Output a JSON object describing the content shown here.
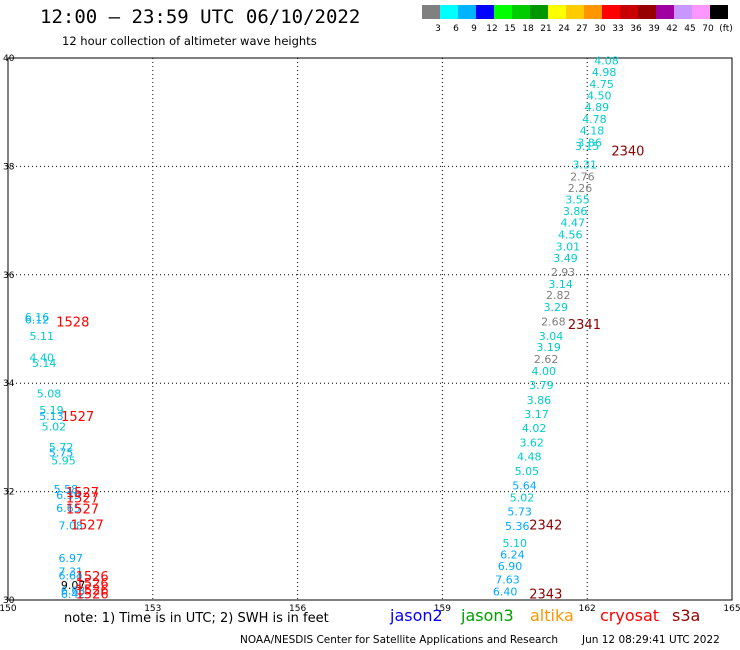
{
  "header": {
    "title": "12:00 – 23:59 UTC 06/10/2022",
    "subtitle": "12 hour collection of altimeter wave heights"
  },
  "colorbar": {
    "colors": [
      "#808080",
      "#00ffff",
      "#00b4ff",
      "#0000ff",
      "#00ff00",
      "#00cc00",
      "#009600",
      "#ffff00",
      "#ffcc00",
      "#ff9600",
      "#ff0000",
      "#c80000",
      "#960000",
      "#a000a0",
      "#c896ff",
      "#ff96ff",
      "#000000"
    ],
    "labels": [
      "3",
      "6",
      "9",
      "12",
      "15",
      "18",
      "21",
      "24",
      "27",
      "30",
      "33",
      "36",
      "39",
      "42",
      "45",
      "70",
      "(ft)"
    ]
  },
  "chart_data": {
    "type": "scatter",
    "xlim": [
      150,
      165
    ],
    "ylim": [
      30,
      40
    ],
    "x_ticks": [
      "150",
      "153",
      "156",
      "159",
      "162",
      "165"
    ],
    "y_ticks": [
      "30",
      "32",
      "34",
      "36",
      "38",
      "40"
    ],
    "grid": true,
    "swh_values": [
      {
        "lon": 162.4,
        "lat": 39.88,
        "text": "4.08",
        "color": "#00cccc"
      },
      {
        "lon": 162.35,
        "lat": 39.67,
        "text": "4.98",
        "color": "#00cccc"
      },
      {
        "lon": 162.3,
        "lat": 39.45,
        "text": "4.75",
        "color": "#00cccc"
      },
      {
        "lon": 162.25,
        "lat": 39.23,
        "text": "4.50",
        "color": "#00cccc"
      },
      {
        "lon": 162.2,
        "lat": 39.02,
        "text": "4.89",
        "color": "#00cccc"
      },
      {
        "lon": 162.15,
        "lat": 38.8,
        "text": "4.78",
        "color": "#00cccc"
      },
      {
        "lon": 162.1,
        "lat": 38.59,
        "text": "4.18",
        "color": "#00cccc"
      },
      {
        "lon": 162.05,
        "lat": 38.37,
        "text": "3.86",
        "color": "#00cccc"
      },
      {
        "lon": 162.0,
        "lat": 38.3,
        "text": "3.15",
        "color": "#00cccc"
      },
      {
        "lon": 161.95,
        "lat": 37.96,
        "text": "3.31",
        "color": "#00cccc"
      },
      {
        "lon": 161.9,
        "lat": 37.74,
        "text": "2.76",
        "color": "#808080"
      },
      {
        "lon": 161.85,
        "lat": 37.53,
        "text": "2.26",
        "color": "#808080"
      },
      {
        "lon": 161.8,
        "lat": 37.32,
        "text": "3.55",
        "color": "#00cccc"
      },
      {
        "lon": 161.75,
        "lat": 37.1,
        "text": "3.86",
        "color": "#00cccc"
      },
      {
        "lon": 161.7,
        "lat": 36.89,
        "text": "4.47",
        "color": "#00cccc"
      },
      {
        "lon": 161.65,
        "lat": 36.67,
        "text": "4.56",
        "color": "#00cccc"
      },
      {
        "lon": 161.6,
        "lat": 36.45,
        "text": "3.01",
        "color": "#00cccc"
      },
      {
        "lon": 161.55,
        "lat": 36.24,
        "text": "3.49",
        "color": "#00cccc"
      },
      {
        "lon": 161.5,
        "lat": 35.98,
        "text": "2.93",
        "color": "#808080"
      },
      {
        "lon": 161.45,
        "lat": 35.76,
        "text": "3.14",
        "color": "#00cccc"
      },
      {
        "lon": 161.4,
        "lat": 35.55,
        "text": "2.82",
        "color": "#808080"
      },
      {
        "lon": 161.35,
        "lat": 35.33,
        "text": "3.29",
        "color": "#00cccc"
      },
      {
        "lon": 161.3,
        "lat": 35.06,
        "text": "2.68",
        "color": "#808080"
      },
      {
        "lon": 161.25,
        "lat": 34.8,
        "text": "3.04",
        "color": "#00cccc"
      },
      {
        "lon": 161.2,
        "lat": 34.59,
        "text": "3.19",
        "color": "#00cccc"
      },
      {
        "lon": 161.15,
        "lat": 34.37,
        "text": "2.62",
        "color": "#808080"
      },
      {
        "lon": 161.1,
        "lat": 34.15,
        "text": "4.00",
        "color": "#00cccc"
      },
      {
        "lon": 161.05,
        "lat": 33.89,
        "text": "3.79",
        "color": "#00cccc"
      },
      {
        "lon": 161.0,
        "lat": 33.62,
        "text": "3.86",
        "color": "#00cccc"
      },
      {
        "lon": 160.95,
        "lat": 33.36,
        "text": "3.17",
        "color": "#00cccc"
      },
      {
        "lon": 160.9,
        "lat": 33.1,
        "text": "4.02",
        "color": "#00cccc"
      },
      {
        "lon": 160.85,
        "lat": 32.83,
        "text": "3.62",
        "color": "#00cccc"
      },
      {
        "lon": 160.8,
        "lat": 32.57,
        "text": "4.48",
        "color": "#00cccc"
      },
      {
        "lon": 160.75,
        "lat": 32.31,
        "text": "5.05",
        "color": "#00cccc"
      },
      {
        "lon": 160.7,
        "lat": 32.04,
        "text": "5.64",
        "color": "#00aaff"
      },
      {
        "lon": 160.65,
        "lat": 31.82,
        "text": "5.02",
        "color": "#00cccc"
      },
      {
        "lon": 160.6,
        "lat": 31.56,
        "text": "5.73",
        "color": "#00aaff"
      },
      {
        "lon": 160.55,
        "lat": 31.29,
        "text": "5.36",
        "color": "#00aaff"
      },
      {
        "lon": 160.5,
        "lat": 30.98,
        "text": "5.10",
        "color": "#00cccc"
      },
      {
        "lon": 160.45,
        "lat": 30.77,
        "text": "6.24",
        "color": "#00aaff"
      },
      {
        "lon": 160.4,
        "lat": 30.55,
        "text": "6.90",
        "color": "#00aaff"
      },
      {
        "lon": 160.35,
        "lat": 30.3,
        "text": "7.63",
        "color": "#00aaff"
      },
      {
        "lon": 160.3,
        "lat": 30.08,
        "text": "6.40",
        "color": "#00aaff"
      },
      {
        "lon": 150.6,
        "lat": 35.15,
        "text": "6.16",
        "color": "#00cccc"
      },
      {
        "lon": 150.6,
        "lat": 35.1,
        "text": "6.12",
        "color": "#00aaff"
      },
      {
        "lon": 150.7,
        "lat": 34.8,
        "text": "5.11",
        "color": "#00cccc"
      },
      {
        "lon": 150.7,
        "lat": 34.4,
        "text": "4.40",
        "color": "#00cccc"
      },
      {
        "lon": 150.75,
        "lat": 34.3,
        "text": "5.14",
        "color": "#00cccc"
      },
      {
        "lon": 150.85,
        "lat": 33.74,
        "text": "5.08",
        "color": "#00cccc"
      },
      {
        "lon": 150.9,
        "lat": 33.43,
        "text": "5.19",
        "color": "#00cccc"
      },
      {
        "lon": 150.9,
        "lat": 33.32,
        "text": "5.13",
        "color": "#00aaff"
      },
      {
        "lon": 150.95,
        "lat": 33.13,
        "text": "5.02",
        "color": "#00cccc"
      },
      {
        "lon": 151.1,
        "lat": 32.75,
        "text": "5.72",
        "color": "#00cccc"
      },
      {
        "lon": 151.1,
        "lat": 32.65,
        "text": "5.75",
        "color": "#00aaff"
      },
      {
        "lon": 151.15,
        "lat": 32.5,
        "text": "5.95",
        "color": "#00cccc"
      },
      {
        "lon": 151.2,
        "lat": 31.97,
        "text": "5.58",
        "color": "#00aaff"
      },
      {
        "lon": 151.25,
        "lat": 31.86,
        "text": "6.39",
        "color": "#00aaff"
      },
      {
        "lon": 151.25,
        "lat": 31.62,
        "text": "6.65",
        "color": "#00aaff"
      },
      {
        "lon": 151.3,
        "lat": 31.3,
        "text": "7.08",
        "color": "#00aaff"
      },
      {
        "lon": 151.3,
        "lat": 30.7,
        "text": "6.97",
        "color": "#00aaff"
      },
      {
        "lon": 151.3,
        "lat": 30.45,
        "text": "7.31",
        "color": "#00aaff"
      },
      {
        "lon": 151.3,
        "lat": 30.38,
        "text": "6.64",
        "color": "#00aaff"
      },
      {
        "lon": 151.35,
        "lat": 30.2,
        "text": "9.07",
        "color": "#000000"
      },
      {
        "lon": 151.35,
        "lat": 30.1,
        "text": "6.63",
        "color": "#00aaff"
      },
      {
        "lon": 151.35,
        "lat": 30.04,
        "text": "6.42",
        "color": "#00aaff"
      }
    ],
    "time_labels": [
      {
        "lon": 162.5,
        "lat": 38.2,
        "text": "2340",
        "color": "#8b0000"
      },
      {
        "lon": 161.6,
        "lat": 35.0,
        "text": "2341",
        "color": "#8b0000"
      },
      {
        "lon": 160.8,
        "lat": 31.3,
        "text": "2342",
        "color": "#8b0000"
      },
      {
        "lon": 160.8,
        "lat": 30.03,
        "text": "2343",
        "color": "#8b0000"
      },
      {
        "lon": 151.0,
        "lat": 35.05,
        "text": "1528",
        "color": "#ff0000"
      },
      {
        "lon": 151.1,
        "lat": 33.3,
        "text": "1527",
        "color": "#ff0000"
      },
      {
        "lon": 151.2,
        "lat": 31.9,
        "text": "1527",
        "color": "#ff0000"
      },
      {
        "lon": 151.2,
        "lat": 31.8,
        "text": "1527",
        "color": "#ff0000"
      },
      {
        "lon": 151.2,
        "lat": 31.6,
        "text": "1527",
        "color": "#ff0000"
      },
      {
        "lon": 151.3,
        "lat": 31.3,
        "text": "1527",
        "color": "#ff0000"
      },
      {
        "lon": 151.4,
        "lat": 30.35,
        "text": "1526",
        "color": "#ff0000"
      },
      {
        "lon": 151.4,
        "lat": 30.22,
        "text": "1526",
        "color": "#ff0000"
      },
      {
        "lon": 151.4,
        "lat": 30.1,
        "text": "1526",
        "color": "#ff0000"
      },
      {
        "lon": 151.4,
        "lat": 30.03,
        "text": "1526",
        "color": "#ff0000"
      }
    ]
  },
  "footer": {
    "note": "note: 1) Time is in UTC; 2) SWH is in feet",
    "satellites": [
      {
        "name": "jason2",
        "color": "#0000ff"
      },
      {
        "name": "jason3",
        "color": "#00a000"
      },
      {
        "name": "altika",
        "color": "#ff9600"
      },
      {
        "name": "cryosat",
        "color": "#ff0000"
      },
      {
        "name": "s3a",
        "color": "#960000"
      }
    ],
    "credit": "NOAA/NESDIS Center for Satellite Applications and Research",
    "timestamp": "Jun 12 08:29:41 UTC 2022"
  }
}
